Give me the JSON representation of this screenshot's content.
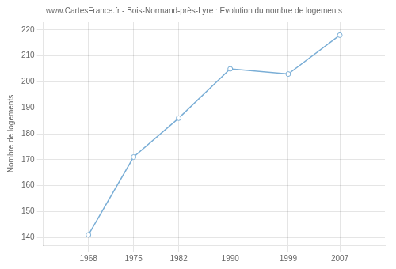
{
  "chart_data": {
    "type": "line",
    "title": "www.CartesFrance.fr - Bois-Normand-près-Lyre : Evolution du nombre de logements",
    "ylabel": "Nombre de logements",
    "x": [
      1968,
      1975,
      1982,
      1990,
      1999,
      2007
    ],
    "values": [
      141,
      171,
      186,
      205,
      203,
      218
    ],
    "color": "#7aaed6",
    "marker": "circle",
    "xlim": [
      1961,
      2014
    ],
    "xticks": [
      1968,
      1975,
      1982,
      1990,
      1999,
      2007
    ],
    "ylim": [
      137,
      223
    ],
    "yticks": [
      140,
      150,
      160,
      170,
      180,
      190,
      200,
      210,
      220
    ],
    "grid": true
  }
}
